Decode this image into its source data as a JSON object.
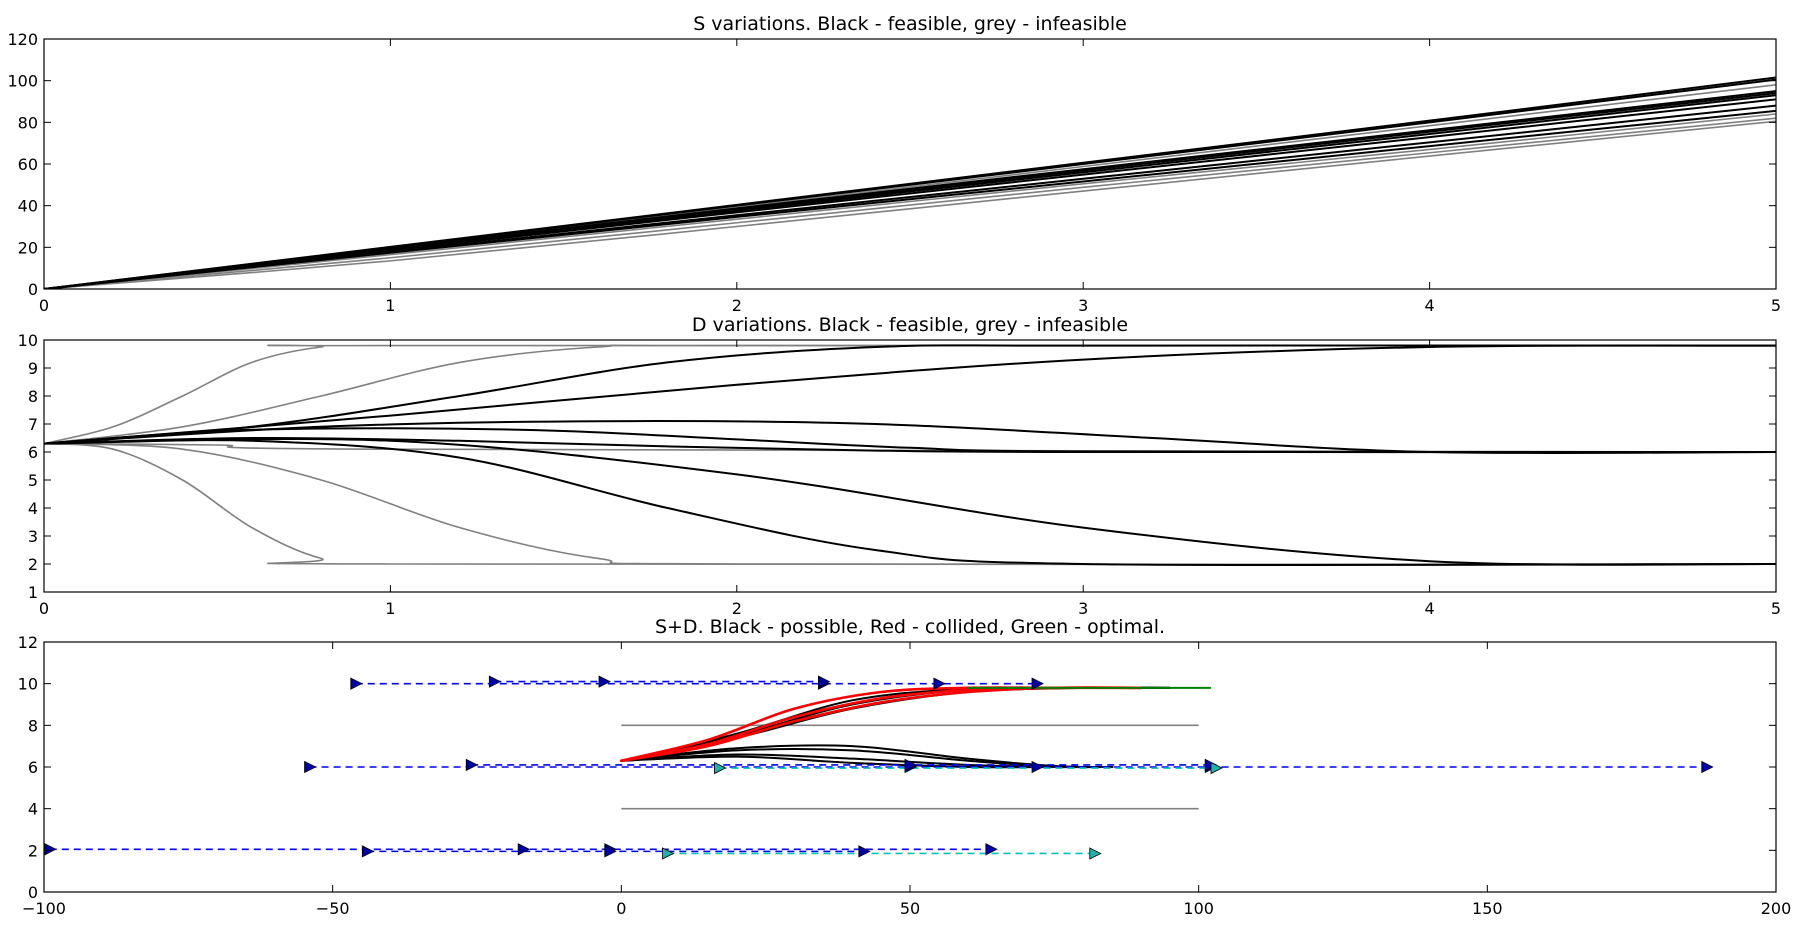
{
  "chart_data": [
    {
      "type": "line",
      "title": "S variations. Black - feasible, grey - infeasible",
      "xlabel": "",
      "ylabel": "",
      "xlim": [
        0,
        5
      ],
      "ylim": [
        0,
        120
      ],
      "xticks": [
        "0",
        "1",
        "2",
        "3",
        "4",
        "5"
      ],
      "yticks": [
        "0",
        "20",
        "40",
        "60",
        "80",
        "100",
        "120"
      ],
      "grid": false,
      "series": [
        {
          "status": "feasible",
          "color": "#000000",
          "x": [
            0,
            1,
            2,
            3,
            4,
            5
          ],
          "y": [
            0,
            20.2,
            40.4,
            60.6,
            80.8,
            101.5
          ]
        },
        {
          "status": "feasible",
          "color": "#000000",
          "x": [
            0,
            1,
            2,
            3,
            4,
            5
          ],
          "y": [
            0,
            20,
            40,
            60,
            80,
            100.5
          ]
        },
        {
          "status": "feasible",
          "color": "#000000",
          "x": [
            0,
            1,
            2,
            3,
            4,
            5
          ],
          "y": [
            0,
            19.4,
            38.7,
            57.5,
            76.2,
            95
          ]
        },
        {
          "status": "feasible",
          "color": "#000000",
          "x": [
            0,
            1,
            2,
            3,
            4,
            5
          ],
          "y": [
            0,
            19.2,
            38.2,
            56.9,
            75.5,
            94
          ]
        },
        {
          "status": "feasible",
          "color": "#000000",
          "x": [
            0,
            1,
            2,
            3,
            4,
            5
          ],
          "y": [
            0,
            18.9,
            37.6,
            56,
            74.4,
            93
          ]
        },
        {
          "status": "feasible",
          "color": "#000000",
          "x": [
            0,
            1,
            2,
            3,
            4,
            5
          ],
          "y": [
            0,
            18.5,
            36.8,
            54.9,
            72.9,
            91
          ]
        },
        {
          "status": "feasible",
          "color": "#000000",
          "x": [
            0,
            1,
            2,
            3,
            4,
            5
          ],
          "y": [
            0,
            17.8,
            35.4,
            52.9,
            70.4,
            88
          ]
        },
        {
          "status": "feasible",
          "color": "#000000",
          "x": [
            0,
            1,
            2,
            3,
            4,
            5
          ],
          "y": [
            0,
            17.4,
            34.6,
            51.6,
            68.6,
            85.5
          ]
        },
        {
          "status": "infeasible",
          "color": "#808080",
          "x": [
            0,
            1,
            2,
            3,
            4,
            5
          ],
          "y": [
            0,
            19.6,
            39.2,
            58.8,
            78.4,
            98
          ]
        },
        {
          "status": "infeasible",
          "color": "#808080",
          "x": [
            0,
            1,
            2,
            3,
            4,
            5
          ],
          "y": [
            0,
            16.5,
            33.5,
            50.5,
            67,
            84
          ]
        },
        {
          "status": "infeasible",
          "color": "#808080",
          "x": [
            0,
            1,
            2,
            3,
            4,
            5
          ],
          "y": [
            0,
            15,
            31.8,
            48.8,
            65.4,
            82
          ]
        },
        {
          "status": "infeasible",
          "color": "#808080",
          "x": [
            0,
            1,
            2,
            3,
            4,
            5
          ],
          "y": [
            0,
            13.5,
            30,
            47,
            63.8,
            80.5
          ]
        }
      ]
    },
    {
      "type": "line",
      "title": "D variations. Black - feasible, grey - infeasible",
      "xlabel": "",
      "ylabel": "",
      "xlim": [
        0,
        5
      ],
      "ylim": [
        1,
        10
      ],
      "xticks": [
        "0",
        "1",
        "2",
        "3",
        "4",
        "5"
      ],
      "yticks": [
        "1",
        "2",
        "3",
        "4",
        "5",
        "6",
        "7",
        "8",
        "9",
        "10"
      ],
      "grid": false,
      "series": [
        {
          "status": "infeasible",
          "color": "#808080",
          "x": [
            0,
            0.2,
            0.4,
            0.6,
            0.8,
            1,
            5
          ],
          "y": [
            6.3,
            6.9,
            8.0,
            9.2,
            9.75,
            9.8,
            9.8
          ]
        },
        {
          "status": "infeasible",
          "color": "#808080",
          "x": [
            0,
            0.4,
            0.8,
            1.2,
            1.6,
            2,
            5
          ],
          "y": [
            6.3,
            6.9,
            8.0,
            9.2,
            9.75,
            9.8,
            9.8
          ]
        },
        {
          "status": "feasible",
          "color": "#000000",
          "x": [
            0,
            0.6,
            1.2,
            1.8,
            2.4,
            3,
            5
          ],
          "y": [
            6.3,
            6.9,
            8.0,
            9.2,
            9.75,
            9.8,
            9.8
          ]
        },
        {
          "status": "feasible",
          "color": "#000000",
          "x": [
            0,
            1,
            2,
            3,
            4,
            5
          ],
          "y": [
            6.3,
            7.3,
            8.4,
            9.3,
            9.75,
            9.8
          ]
        },
        {
          "status": "feasible",
          "color": "#000000",
          "x": [
            0,
            0.8,
            1.6,
            2.4,
            3.2,
            4,
            5
          ],
          "y": [
            6.3,
            6.9,
            7.1,
            7.0,
            6.5,
            6.0,
            6.0
          ]
        },
        {
          "status": "feasible",
          "color": "#000000",
          "x": [
            0,
            0.5,
            1,
            1.5,
            2,
            2.5,
            3,
            5
          ],
          "y": [
            6.3,
            6.75,
            6.85,
            6.75,
            6.45,
            6.15,
            6.02,
            6.0
          ]
        },
        {
          "status": "infeasible",
          "color": "#808080",
          "x": [
            0,
            0.5,
            1,
            5
          ],
          "y": [
            6.3,
            6.25,
            6.1,
            6.0
          ]
        },
        {
          "status": "feasible",
          "color": "#000000",
          "x": [
            0,
            0.6,
            1.2,
            1.8,
            2.4,
            3,
            5
          ],
          "y": [
            6.3,
            6.5,
            6.4,
            6.2,
            6.05,
            6.0,
            6.0
          ]
        },
        {
          "status": "feasible",
          "color": "#000000",
          "x": [
            0,
            1,
            2,
            3,
            4,
            5
          ],
          "y": [
            6.3,
            6.4,
            5.2,
            3.3,
            2.1,
            2.0
          ]
        },
        {
          "status": "feasible",
          "color": "#000000",
          "x": [
            0,
            0.6,
            1.2,
            1.8,
            2.4,
            3,
            5
          ],
          "y": [
            6.3,
            6.4,
            5.8,
            4.0,
            2.5,
            2.0,
            2.0
          ]
        },
        {
          "status": "infeasible",
          "color": "#808080",
          "x": [
            0,
            0.4,
            0.8,
            1.2,
            1.6,
            2,
            5
          ],
          "y": [
            6.3,
            6.1,
            5.0,
            3.3,
            2.2,
            2.0,
            2.0
          ]
        },
        {
          "status": "infeasible",
          "color": "#808080",
          "x": [
            0,
            0.2,
            0.4,
            0.6,
            0.8,
            1,
            5
          ],
          "y": [
            6.3,
            6.1,
            5.0,
            3.3,
            2.2,
            2.0,
            2.0
          ]
        }
      ]
    },
    {
      "type": "line",
      "title": "S+D. Black - possible, Red - collided, Green - optimal.",
      "xlabel": "",
      "ylabel": "",
      "xlim": [
        -100,
        200
      ],
      "ylim": [
        0,
        12
      ],
      "xticks": [
        "−100",
        "−50",
        "0",
        "50",
        "100",
        "150",
        "200"
      ],
      "yticks": [
        "0",
        "2",
        "4",
        "6",
        "8",
        "10",
        "12"
      ],
      "grid": false,
      "lane_boundaries": [
        {
          "color": "#808080",
          "x": [
            0,
            100
          ],
          "y": [
            8,
            8
          ]
        },
        {
          "color": "#808080",
          "x": [
            0,
            100
          ],
          "y": [
            4,
            4
          ]
        }
      ],
      "series": [
        {
          "status": "possible",
          "color": "#000000",
          "x": [
            0,
            20,
            40,
            60,
            80,
            95
          ],
          "y": [
            6.3,
            7.6,
            9.2,
            9.75,
            9.8,
            9.8
          ]
        },
        {
          "status": "possible",
          "color": "#000000",
          "x": [
            0,
            20,
            40,
            60,
            80,
            95
          ],
          "y": [
            6.3,
            7.5,
            9.0,
            9.7,
            9.8,
            9.8
          ]
        },
        {
          "status": "possible",
          "color": "#000000",
          "x": [
            0,
            20,
            40,
            60,
            80,
            95
          ],
          "y": [
            6.3,
            7.4,
            8.8,
            9.6,
            9.8,
            9.8
          ]
        },
        {
          "status": "collided",
          "color": "#ff0000",
          "x": [
            0,
            15,
            30,
            45,
            60,
            75,
            90
          ],
          "y": [
            6.3,
            7.3,
            8.8,
            9.6,
            9.8,
            9.8,
            9.8
          ]
        },
        {
          "status": "collided",
          "color": "#ff0000",
          "x": [
            0,
            15,
            30,
            45,
            60,
            75,
            90
          ],
          "y": [
            6.3,
            7.1,
            8.4,
            9.3,
            9.7,
            9.8,
            9.8
          ]
        },
        {
          "status": "collided",
          "color": "#ff0000",
          "x": [
            0,
            15,
            30,
            45,
            60,
            75,
            90
          ],
          "y": [
            6.3,
            7.0,
            8.2,
            9.1,
            9.6,
            9.8,
            9.8
          ]
        },
        {
          "status": "optimal",
          "color": "#008000",
          "x": [
            60,
            102
          ],
          "y": [
            9.8,
            9.8
          ]
        },
        {
          "status": "possible",
          "color": "#000000",
          "x": [
            0,
            20,
            40,
            60,
            75,
            85
          ],
          "y": [
            6.3,
            6.9,
            7.0,
            6.4,
            6.05,
            6.0
          ]
        },
        {
          "status": "possible",
          "color": "#000000",
          "x": [
            0,
            20,
            40,
            60,
            75,
            85
          ],
          "y": [
            6.3,
            6.8,
            6.8,
            6.3,
            6.03,
            6.0
          ]
        },
        {
          "status": "possible",
          "color": "#000000",
          "x": [
            0,
            20,
            40,
            60,
            75,
            85
          ],
          "y": [
            6.3,
            6.6,
            6.4,
            6.1,
            6.0,
            6.0
          ]
        },
        {
          "status": "possible",
          "color": "#000000",
          "x": [
            0,
            20,
            40,
            60,
            75,
            85
          ],
          "y": [
            6.3,
            6.5,
            6.2,
            6.0,
            6.0,
            6.0
          ]
        }
      ],
      "obstacle_tracks": [
        {
          "color": "#0000ff",
          "marker_color": "#0000aa",
          "y": 10.0,
          "x": [
            -46,
            35,
            55,
            72
          ]
        },
        {
          "color": "#0000ff",
          "marker_color": "#0000aa",
          "y": 10.1,
          "x": [
            -22,
            -3,
            35
          ]
        },
        {
          "color": "#0000ff",
          "marker_color": "#0000aa",
          "y": 6.0,
          "x": [
            -54,
            50,
            72,
            102,
            188
          ]
        },
        {
          "color": "#0000ff",
          "marker_color": "#0000aa",
          "y": 6.1,
          "x": [
            -26,
            50,
            102
          ]
        },
        {
          "color": "#00bfbf",
          "marker_color": "#20b2aa",
          "y": 5.95,
          "x": [
            17,
            103
          ]
        },
        {
          "color": "#0000ff",
          "marker_color": "#0000aa",
          "y": 2.05,
          "x": [
            -99,
            -17,
            -2,
            64
          ]
        },
        {
          "color": "#0000ff",
          "marker_color": "#0000aa",
          "y": 1.95,
          "x": [
            -44,
            -2,
            42
          ]
        },
        {
          "color": "#00bfbf",
          "marker_color": "#20b2aa",
          "y": 1.85,
          "x": [
            8,
            82
          ]
        }
      ]
    }
  ]
}
